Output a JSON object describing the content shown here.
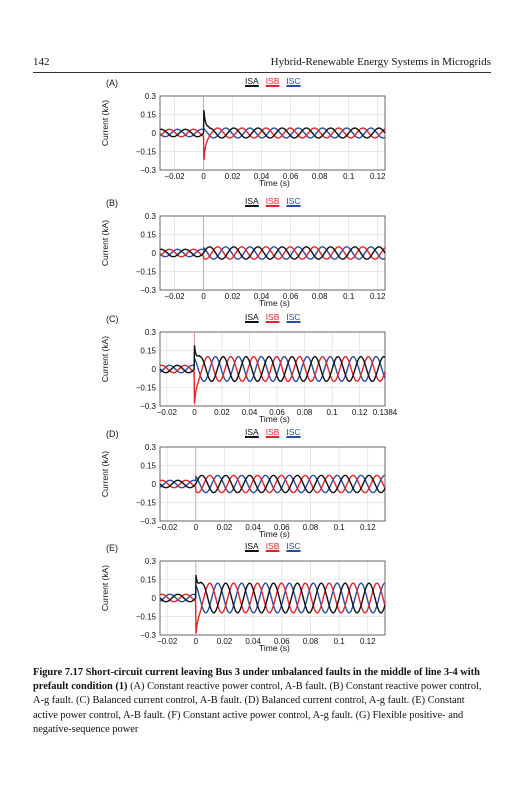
{
  "header": {
    "page_number": "142",
    "running_title": "Hybrid-Renewable Energy Systems in Microgrids"
  },
  "legend": [
    {
      "label": "ISA",
      "color": "#111111"
    },
    {
      "label": "ISB",
      "color": "#e3242b"
    },
    {
      "label": "ISC",
      "color": "#2b4ea2"
    }
  ],
  "caption": {
    "bold": "Figure 7.17 Short-circuit current leaving Bus 3 under unbalanced faults in the middle of line 3-4 with prefault condition (1)",
    "text": " (A) Constant reactive power control, A-B fault. (B) Constant reactive power control, A-g fault. (C) Balanced current control, A-B fault. (D) Balanced current control, A-g fault. (E) Constant active power control, A-B fault. (F) Constant active power control, A-g fault. (G) Flexible positive- and negative-sequence power"
  },
  "chart_data": [
    {
      "type": "line",
      "panel_label": "(A)",
      "xlabel": "Time (s)",
      "ylabel": "Current (kA)",
      "xlim": [
        -0.03,
        0.125
      ],
      "ylim": [
        -0.3,
        0.3
      ],
      "xticks": [
        "-0.02",
        "0",
        "0.02",
        "0.04",
        "0.06",
        "0.08",
        "0.1",
        "0.12"
      ],
      "yticks": [
        "0.3",
        "0.15",
        "0",
        "-0.15",
        "-0.3"
      ],
      "fault_time": 0,
      "prefault_amplitude": 0.03,
      "postfault_amplitude": 0.04,
      "fault_spike": 0.22,
      "frequency_hz": 60,
      "series": [
        {
          "name": "ISA"
        },
        {
          "name": "ISB"
        },
        {
          "name": "ISC"
        }
      ]
    },
    {
      "type": "line",
      "panel_label": "(B)",
      "xlabel": "Time (s)",
      "ylabel": "Current (kA)",
      "xlim": [
        -0.03,
        0.125
      ],
      "ylim": [
        -0.3,
        0.3
      ],
      "xticks": [
        "-0.02",
        "0",
        "0.02",
        "0.04",
        "0.06",
        "0.08",
        "0.1",
        "0.12"
      ],
      "yticks": [
        "0.3",
        "0.15",
        "0",
        "-0.15",
        "-0.3"
      ],
      "fault_time": 0,
      "prefault_amplitude": 0.03,
      "postfault_amplitude": 0.05,
      "fault_spike": 0,
      "frequency_hz": 60,
      "series": [
        {
          "name": "ISA"
        },
        {
          "name": "ISB"
        },
        {
          "name": "ISC"
        }
      ]
    },
    {
      "type": "line",
      "panel_label": "(C)",
      "xlabel": "Time (s)",
      "ylabel": "Current (kA)",
      "xlim": [
        -0.025,
        0.1384
      ],
      "ylim": [
        -0.3,
        0.3
      ],
      "xticks": [
        "-0.02",
        "0",
        "0.02",
        "0.04",
        "0.06",
        "0.08",
        "0.1",
        "0.12",
        "0.1384"
      ],
      "yticks": [
        "0.3",
        "0.15",
        "0",
        "-0.15",
        "-0.3"
      ],
      "fault_time": 0,
      "prefault_amplitude": 0.03,
      "postfault_amplitude": 0.1,
      "fault_spike": 0.2,
      "frequency_hz": 60,
      "series": [
        {
          "name": "ISA"
        },
        {
          "name": "ISB"
        },
        {
          "name": "ISC"
        }
      ]
    },
    {
      "type": "line",
      "panel_label": "(D)",
      "xlabel": "Time (s)",
      "ylabel": "Current (kA)",
      "xlim": [
        -0.025,
        0.132
      ],
      "ylim": [
        -0.3,
        0.3
      ],
      "xticks": [
        "-0.02",
        "0",
        "0.02",
        "0.04",
        "0.06",
        "0.08",
        "0.1",
        "0.12"
      ],
      "yticks": [
        "0.3",
        "0.15",
        "0",
        "-0.15",
        "-0.3"
      ],
      "fault_time": 0,
      "prefault_amplitude": 0.03,
      "postfault_amplitude": 0.07,
      "fault_spike": 0,
      "frequency_hz": 60,
      "series": [
        {
          "name": "ISA"
        },
        {
          "name": "ISB"
        },
        {
          "name": "ISC"
        }
      ]
    },
    {
      "type": "line",
      "panel_label": "(E)",
      "xlabel": "Time (s)",
      "ylabel": "Current (kA)",
      "xlim": [
        -0.025,
        0.132
      ],
      "ylim": [
        -0.3,
        0.3
      ],
      "xticks": [
        "-0.02",
        "0",
        "0.02",
        "0.04",
        "0.06",
        "0.08",
        "0.1",
        "0.12"
      ],
      "yticks": [
        "0.3",
        "0.15",
        "0",
        "-0.15",
        "-0.3"
      ],
      "fault_time": 0,
      "prefault_amplitude": 0.03,
      "postfault_amplitude": 0.12,
      "fault_spike": 0.2,
      "frequency_hz": 60,
      "series": [
        {
          "name": "ISA"
        },
        {
          "name": "ISB"
        },
        {
          "name": "ISC"
        }
      ]
    }
  ]
}
